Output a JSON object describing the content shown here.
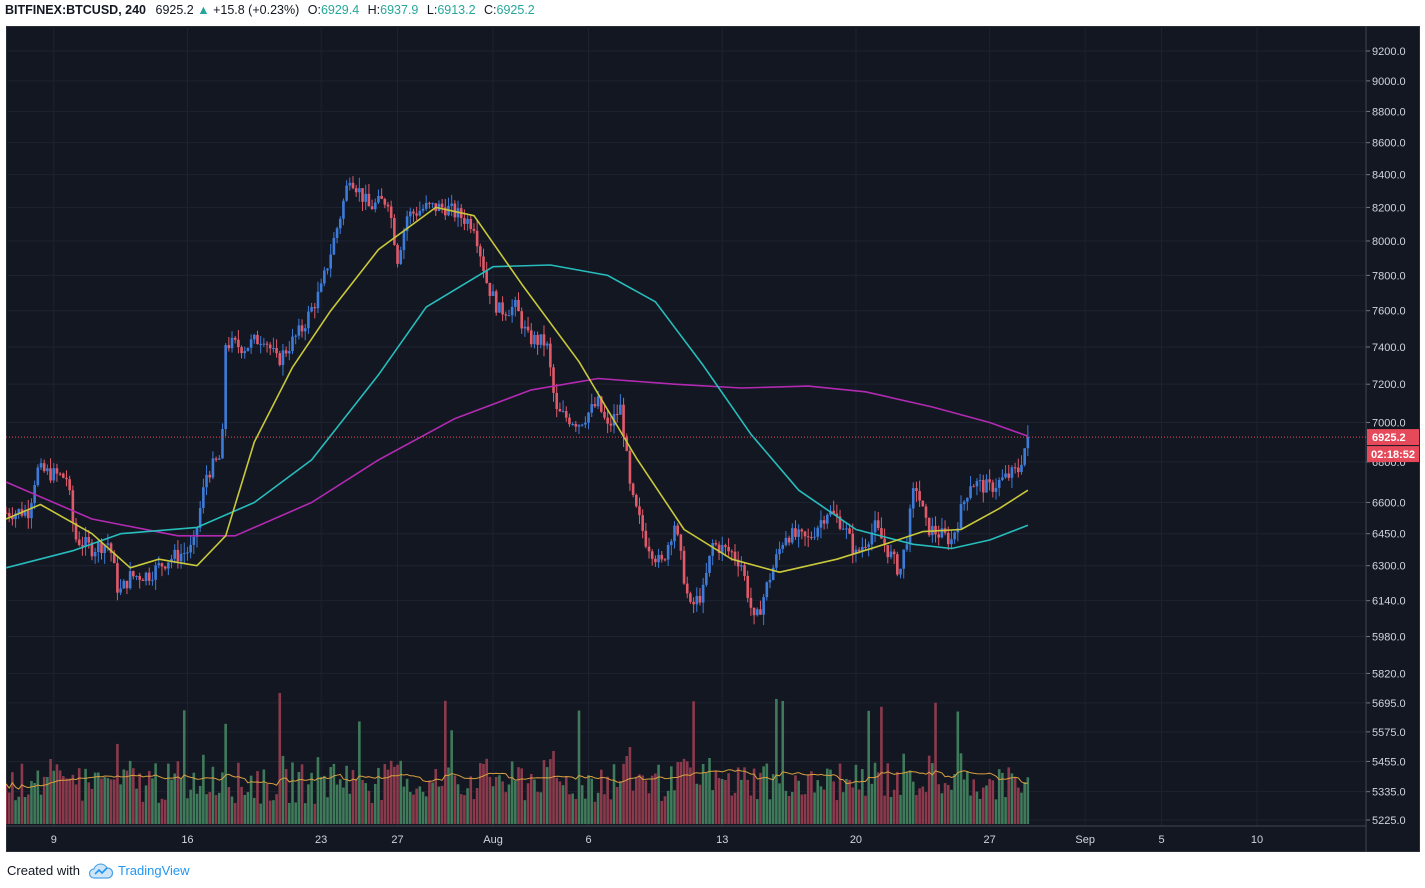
{
  "header": {
    "symbol": "BITFINEX:BTCUSD,",
    "timeframe": "240",
    "last": "6925.2",
    "change_arrow": "▲",
    "change": "+15.8 (+0.23%)",
    "open_label": "O:",
    "open": "6929.4",
    "high_label": "H:",
    "high": "6937.9",
    "low_label": "L:",
    "low": "6913.2",
    "close_label": "C:",
    "close": "6925.2"
  },
  "price_badge": "6925.2",
  "countdown_badge": "02:18:52",
  "footer": {
    "created_with": "Created with",
    "brand": "TradingView"
  },
  "colors": {
    "background": "#131722",
    "grid": "#1e2330",
    "up": "#3d7bd9",
    "down": "#e05a6a",
    "vol_up": "#3f7a5a",
    "vol_down": "#8b3a4c",
    "ma_fast": "#c8c83a",
    "ma_mid": "#27bdbd",
    "ma_slow": "#b22ab2",
    "vol_ma": "#d8a040",
    "badge_price": "#e6495a",
    "badge_countdown": "#e6495a",
    "axis_text": "#d1d4dc"
  },
  "chart_data": {
    "type": "candlestick",
    "symbol": "BITFINEX:BTCUSD",
    "interval": "240",
    "x_ticks": [
      "9",
      "16",
      "23",
      "27",
      "Aug",
      "6",
      "13",
      "20",
      "27",
      "Sep",
      "5",
      "10"
    ],
    "y_ticks": [
      "9200.0",
      "9000.0",
      "8800.0",
      "8600.0",
      "8400.0",
      "8200.0",
      "8000.0",
      "7800.0",
      "7600.0",
      "7400.0",
      "7200.0",
      "7000.0",
      "6800.0",
      "6600.0",
      "6450.0",
      "6300.0",
      "6140.0",
      "5980.0",
      "5820.0",
      "5695.0",
      "5575.0",
      "5455.0",
      "5335.0",
      "5225.0"
    ],
    "y_scale": "log",
    "y_range": [
      5225,
      9250
    ],
    "last_price": 6925.2,
    "anchors": [
      {
        "day": 0,
        "price": 6550
      },
      {
        "day": 1.2,
        "price": 6560
      },
      {
        "day": 1.6,
        "price": 6760
      },
      {
        "day": 3.2,
        "price": 6720
      },
      {
        "day": 3.6,
        "price": 6430
      },
      {
        "day": 4.5,
        "price": 6380
      },
      {
        "day": 5.4,
        "price": 6410
      },
      {
        "day": 5.9,
        "price": 6170
      },
      {
        "day": 6.5,
        "price": 6250
      },
      {
        "day": 7.5,
        "price": 6260
      },
      {
        "day": 8.5,
        "price": 6330
      },
      {
        "day": 9.8,
        "price": 6380
      },
      {
        "day": 10.5,
        "price": 6740
      },
      {
        "day": 11.3,
        "price": 6830
      },
      {
        "day": 11.5,
        "price": 7420
      },
      {
        "day": 12.5,
        "price": 7400
      },
      {
        "day": 13.5,
        "price": 7460
      },
      {
        "day": 14.2,
        "price": 7320
      },
      {
        "day": 15.5,
        "price": 7500
      },
      {
        "day": 16.5,
        "price": 7720
      },
      {
        "day": 17.5,
        "price": 8150
      },
      {
        "day": 18.0,
        "price": 8400
      },
      {
        "day": 19.0,
        "price": 8200
      },
      {
        "day": 20.0,
        "price": 8250
      },
      {
        "day": 20.5,
        "price": 7900
      },
      {
        "day": 21.0,
        "price": 8150
      },
      {
        "day": 22.0,
        "price": 8200
      },
      {
        "day": 23.0,
        "price": 8200
      },
      {
        "day": 24.5,
        "price": 8100
      },
      {
        "day": 25.2,
        "price": 7750
      },
      {
        "day": 25.8,
        "price": 7600
      },
      {
        "day": 26.7,
        "price": 7620
      },
      {
        "day": 27.3,
        "price": 7450
      },
      {
        "day": 28.3,
        "price": 7420
      },
      {
        "day": 28.8,
        "price": 7050
      },
      {
        "day": 30.0,
        "price": 7000
      },
      {
        "day": 31.0,
        "price": 7100
      },
      {
        "day": 31.5,
        "price": 6970
      },
      {
        "day": 32.2,
        "price": 7080
      },
      {
        "day": 32.7,
        "price": 6640
      },
      {
        "day": 33.5,
        "price": 6420
      },
      {
        "day": 34.3,
        "price": 6300
      },
      {
        "day": 35.0,
        "price": 6500
      },
      {
        "day": 35.8,
        "price": 6100
      },
      {
        "day": 36.5,
        "price": 6180
      },
      {
        "day": 37.0,
        "price": 6400
      },
      {
        "day": 38.0,
        "price": 6360
      },
      {
        "day": 38.5,
        "price": 6310
      },
      {
        "day": 39.2,
        "price": 6030
      },
      {
        "day": 40.0,
        "price": 6250
      },
      {
        "day": 40.8,
        "price": 6450
      },
      {
        "day": 42.0,
        "price": 6420
      },
      {
        "day": 43.0,
        "price": 6560
      },
      {
        "day": 43.8,
        "price": 6500
      },
      {
        "day": 44.5,
        "price": 6350
      },
      {
        "day": 45.5,
        "price": 6480
      },
      {
        "day": 46.8,
        "price": 6270
      },
      {
        "day": 47.2,
        "price": 6450
      },
      {
        "day": 47.6,
        "price": 6700
      },
      {
        "day": 48.2,
        "price": 6480
      },
      {
        "day": 49.5,
        "price": 6420
      },
      {
        "day": 50.5,
        "price": 6700
      },
      {
        "day": 51.5,
        "price": 6670
      },
      {
        "day": 52.5,
        "price": 6730
      },
      {
        "day": 53.0,
        "price": 6760
      },
      {
        "day": 53.5,
        "price": 6925
      }
    ],
    "ma_fast": {
      "pairs": [
        [
          0,
          6520
        ],
        [
          1.8,
          6590
        ],
        [
          4.5,
          6450
        ],
        [
          6.5,
          6290
        ],
        [
          8.0,
          6330
        ],
        [
          10.0,
          6300
        ],
        [
          11.5,
          6440
        ],
        [
          13.0,
          6900
        ],
        [
          15.0,
          7290
        ],
        [
          17.0,
          7600
        ],
        [
          19.5,
          7950
        ],
        [
          22.5,
          8200
        ],
        [
          24.5,
          8150
        ],
        [
          27.0,
          7750
        ],
        [
          30.0,
          7320
        ],
        [
          33.0,
          6820
        ],
        [
          35.5,
          6470
        ],
        [
          38.0,
          6330
        ],
        [
          40.5,
          6270
        ],
        [
          43.5,
          6330
        ],
        [
          46.0,
          6400
        ],
        [
          48.0,
          6460
        ],
        [
          50.0,
          6470
        ],
        [
          52.0,
          6570
        ],
        [
          53.5,
          6660
        ]
      ]
    },
    "ma_mid": {
      "pairs": [
        [
          0,
          6290
        ],
        [
          3.5,
          6370
        ],
        [
          6.0,
          6450
        ],
        [
          10.0,
          6480
        ],
        [
          13.0,
          6600
        ],
        [
          16.0,
          6810
        ],
        [
          19.5,
          7250
        ],
        [
          22.0,
          7620
        ],
        [
          25.5,
          7850
        ],
        [
          28.5,
          7860
        ],
        [
          31.5,
          7800
        ],
        [
          34.0,
          7650
        ],
        [
          36.5,
          7300
        ],
        [
          39.0,
          6940
        ],
        [
          41.5,
          6660
        ],
        [
          44.5,
          6470
        ],
        [
          47.5,
          6400
        ],
        [
          49.5,
          6380
        ],
        [
          51.5,
          6420
        ],
        [
          53.5,
          6490
        ]
      ]
    },
    "ma_slow": {
      "pairs": [
        [
          0,
          6700
        ],
        [
          4.5,
          6520
        ],
        [
          9.0,
          6440
        ],
        [
          12.0,
          6440
        ],
        [
          16.0,
          6600
        ],
        [
          19.5,
          6810
        ],
        [
          23.5,
          7020
        ],
        [
          27.5,
          7170
        ],
        [
          31.0,
          7230
        ],
        [
          35.0,
          7200
        ],
        [
          38.5,
          7180
        ],
        [
          42.0,
          7190
        ],
        [
          45.0,
          7160
        ],
        [
          48.5,
          7080
        ],
        [
          51.5,
          7000
        ],
        [
          53.5,
          6930
        ]
      ]
    },
    "volume": {
      "baseline_level": 0.3,
      "peak_level": 1.0
    }
  }
}
